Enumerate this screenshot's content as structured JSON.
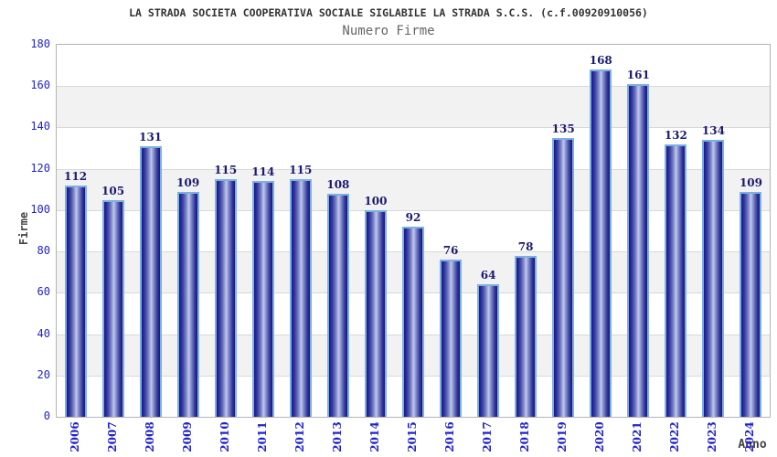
{
  "title": "LA STRADA SOCIETA COOPERATIVA SOCIALE SIGLABILE LA STRADA S.C.S. (c.f.00920910056)",
  "subtitle": "Numero Firme",
  "chart_data": {
    "type": "bar",
    "title": "Numero Firme",
    "categories": [
      "2006",
      "2007",
      "2008",
      "2009",
      "2010",
      "2011",
      "2012",
      "2013",
      "2014",
      "2015",
      "2016",
      "2017",
      "2018",
      "2019",
      "2020",
      "2021",
      "2022",
      "2023",
      "2024"
    ],
    "values": [
      112,
      105,
      131,
      109,
      115,
      114,
      115,
      108,
      100,
      92,
      76,
      64,
      78,
      135,
      168,
      161,
      132,
      134,
      109
    ],
    "xlabel": "Anno",
    "ylabel": "Firme",
    "ylim": [
      0,
      180
    ],
    "ytick_step": 20,
    "yticks": [
      "0",
      "20",
      "40",
      "60",
      "80",
      "100",
      "120",
      "140",
      "160",
      "180"
    ],
    "grid": true,
    "legend": "none",
    "colors": {
      "bar_dark": "#191985",
      "bar_light": "#c3cbef",
      "bar_border": "#7db0e2",
      "value_label": "#1a1a70",
      "tick_label": "#2323cc",
      "axis_label": "#444444",
      "title_text": "#333333",
      "subtitle_text": "#666666",
      "band_gray": "#f2f2f2",
      "band_white": "#ffffff",
      "gridline": "#d9d9d9",
      "plot_border": "#b4b4b4"
    }
  }
}
